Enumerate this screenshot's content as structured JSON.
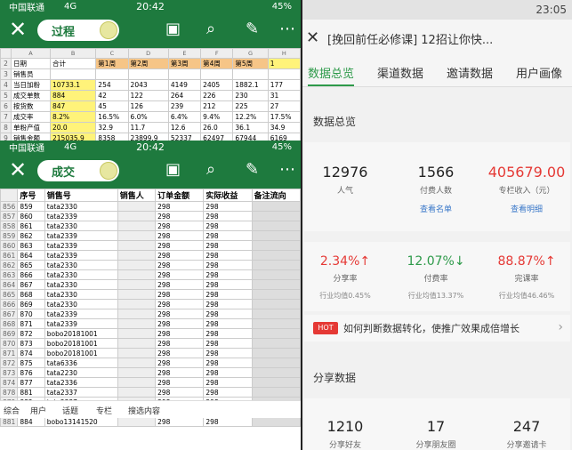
{
  "left_top": {
    "status": {
      "carrier": "中国联通",
      "net": "4G",
      "time": "20:42",
      "battery": "45%"
    },
    "toggle_label": "过程",
    "col_headers": [
      "",
      "A",
      "B",
      "C",
      "D",
      "E",
      "F",
      "G",
      "H"
    ],
    "rows": [
      {
        "n": "2",
        "cells": [
          "日期",
          "合计",
          "第1周",
          "第2周",
          "第3周",
          "第4周",
          "第5周",
          "1"
        ]
      },
      {
        "n": "3",
        "cells": [
          "销售员",
          "",
          "",
          "",
          "",
          "",
          "",
          ""
        ]
      },
      {
        "n": "4",
        "cells": [
          "当日加粉",
          "10733.1",
          "254",
          "2043",
          "4149",
          "2405",
          "1882.1",
          "177"
        ]
      },
      {
        "n": "5",
        "cells": [
          "成交单数",
          "884",
          "42",
          "122",
          "264",
          "226",
          "230",
          "31"
        ]
      },
      {
        "n": "6",
        "cells": [
          "按货数",
          "847",
          "45",
          "126",
          "239",
          "212",
          "225",
          "27"
        ]
      },
      {
        "n": "7",
        "cells": [
          "成交率",
          "8.2%",
          "16.5%",
          "6.0%",
          "6.4%",
          "9.4%",
          "12.2%",
          "17.5%"
        ]
      },
      {
        "n": "8",
        "cells": [
          "单粉产值",
          "20.0",
          "32.9",
          "11.7",
          "12.6",
          "26.0",
          "36.1",
          "34.9"
        ]
      },
      {
        "n": "9",
        "cells": [
          "销售金额",
          "215035.9",
          "8358",
          "23899.9",
          "52337",
          "62497",
          "67944",
          "6169"
        ]
      }
    ]
  },
  "left_bottom": {
    "status": {
      "carrier": "中国联通",
      "net": "4G",
      "time": "20:42",
      "battery": "45%"
    },
    "toggle_label": "成交",
    "headers": [
      "序号",
      "销售号",
      "销售人",
      "订单金额",
      "实际收益",
      "备注流向"
    ],
    "rows": [
      {
        "n": "856",
        "seq": "859",
        "id": "tata2330"
      },
      {
        "n": "857",
        "seq": "860",
        "id": "tata2339"
      },
      {
        "n": "858",
        "seq": "861",
        "id": "tata2330"
      },
      {
        "n": "859",
        "seq": "862",
        "id": "tata2339"
      },
      {
        "n": "860",
        "seq": "863",
        "id": "tata2339"
      },
      {
        "n": "861",
        "seq": "864",
        "id": "tata2339"
      },
      {
        "n": "862",
        "seq": "865",
        "id": "tata2330"
      },
      {
        "n": "863",
        "seq": "866",
        "id": "tata2330"
      },
      {
        "n": "864",
        "seq": "867",
        "id": "tata2330"
      },
      {
        "n": "865",
        "seq": "868",
        "id": "tata2330"
      },
      {
        "n": "866",
        "seq": "869",
        "id": "tata2330"
      },
      {
        "n": "867",
        "seq": "870",
        "id": "tata2339"
      },
      {
        "n": "868",
        "seq": "871",
        "id": "tata2339"
      },
      {
        "n": "869",
        "seq": "872",
        "id": "bobo20181001"
      },
      {
        "n": "870",
        "seq": "873",
        "id": "bobo20181001"
      },
      {
        "n": "871",
        "seq": "874",
        "id": "bobo20181001"
      },
      {
        "n": "872",
        "seq": "875",
        "id": "tata6336"
      },
      {
        "n": "873",
        "seq": "876",
        "id": "tata2230"
      },
      {
        "n": "874",
        "seq": "877",
        "id": "tata2336"
      },
      {
        "n": "878",
        "seq": "881",
        "id": "tata2337"
      },
      {
        "n": "879",
        "seq": "882",
        "id": "tata2337"
      },
      {
        "n": "880",
        "seq": "883",
        "id": "bobo13141520"
      },
      {
        "n": "881",
        "seq": "884",
        "id": "bobo13141520"
      }
    ],
    "order_amount": "298",
    "search_tabs": [
      "综合",
      "用户",
      "话题",
      "专栏",
      "搜选内容"
    ]
  },
  "right": {
    "status_time": "23:05",
    "title": "[挽回前任必修课] 12招让你快...",
    "tabs": [
      "数据总览",
      "渠道数据",
      "邀请数据",
      "用户画像"
    ],
    "overview_label": "数据总览",
    "stats": [
      {
        "value": "12976",
        "label": "人气",
        "link": ""
      },
      {
        "value": "1566",
        "label": "付费人数",
        "link": "查看名单"
      },
      {
        "value": "405679.00",
        "label": "专栏收入（元）",
        "link": "查看明细"
      }
    ],
    "rates": [
      {
        "value": "2.34%",
        "arrow": "↑",
        "label": "分享率",
        "avg": "行业均值0.45%"
      },
      {
        "value": "12.07%",
        "arrow": "↓",
        "label": "付费率",
        "avg": "行业均值13.37%"
      },
      {
        "value": "88.87%",
        "arrow": "↑",
        "label": "完课率",
        "avg": "行业均值46.46%"
      }
    ],
    "hot_badge": "HOT",
    "hot_text": "如何判断数据转化，使推广效果成倍增长",
    "share_label": "分享数据",
    "share_stats": [
      {
        "value": "1210",
        "label": "分享好友"
      },
      {
        "value": "17",
        "label": "分享朋友圈"
      },
      {
        "value": "247",
        "label": "分享邀请卡"
      }
    ],
    "colors": {
      "green": "#2e9a4a",
      "red": "#e53935",
      "link": "#3a78c9"
    }
  }
}
